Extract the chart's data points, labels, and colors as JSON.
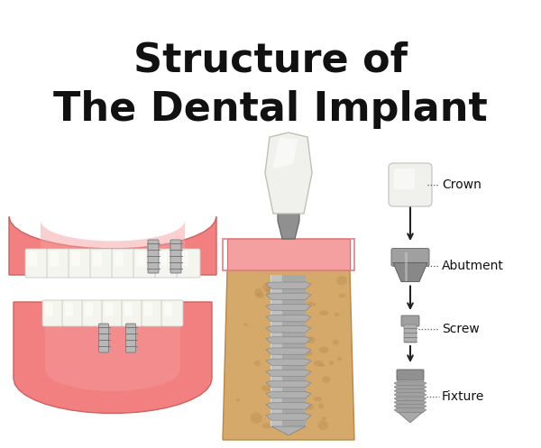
{
  "title_line1": "Structure of",
  "title_line2": "The Dental Implant",
  "title_fontsize": 32,
  "title_color": "#111111",
  "background_color": "#ffffff",
  "labels": [
    "Crown",
    "Abutment",
    "Screw",
    "Fixture"
  ],
  "label_fontsize": 10,
  "dotted_color": "#555555",
  "arrow_color": "#222222",
  "gum_color": "#F28080",
  "gum_light": "#F8A8A8",
  "gum_inner": "#F5A0A0",
  "bone_color": "#D4A96A",
  "bone_dark": "#B8884A",
  "tooth_color": "#F5F5F0",
  "tooth_highlight": "#FFFFFF",
  "tooth_shadow": "#C8C8C0",
  "implant_silver": "#B8B8B8",
  "implant_dark": "#787878",
  "implant_light": "#E0E0E0",
  "crown_white": "#F0F0EC",
  "crown_highlight": "#FFFFFF"
}
